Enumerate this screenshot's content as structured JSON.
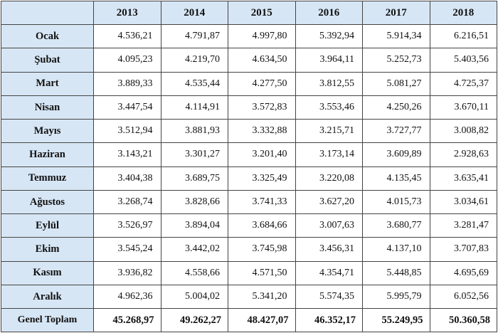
{
  "table": {
    "columns": [
      "2013",
      "2014",
      "2015",
      "2016",
      "2017",
      "2018"
    ],
    "rows": [
      {
        "label": "Ocak",
        "values": [
          "4.536,21",
          "4.791,87",
          "4.997,80",
          "5.392,94",
          "5.914,34",
          "6.216,51"
        ]
      },
      {
        "label": "Şubat",
        "values": [
          "4.095,23",
          "4.219,70",
          "4.634,50",
          "3.964,11",
          "5.252,73",
          "5.403,56"
        ]
      },
      {
        "label": "Mart",
        "values": [
          "3.889,33",
          "4.535,44",
          "4.277,50",
          "3.812,55",
          "5.081,27",
          "4.725,37"
        ]
      },
      {
        "label": "Nisan",
        "values": [
          "3.447,54",
          "4.114,91",
          "3.572,83",
          "3.553,46",
          "4.250,26",
          "3.670,11"
        ]
      },
      {
        "label": "Mayıs",
        "values": [
          "3.512,94",
          "3.881,93",
          "3.332,88",
          "3.215,71",
          "3.727,77",
          "3.008,82"
        ]
      },
      {
        "label": "Haziran",
        "values": [
          "3.143,21",
          "3.301,27",
          "3.201,40",
          "3.173,14",
          "3.609,89",
          "2.928,63"
        ]
      },
      {
        "label": "Temmuz",
        "values": [
          "3.404,38",
          "3.689,75",
          "3.325,49",
          "3.220,08",
          "4.135,45",
          "3.635,41"
        ]
      },
      {
        "label": "Ağustos",
        "values": [
          "3.268,74",
          "3.828,66",
          "3.741,33",
          "3.627,20",
          "4.015,73",
          "3.034,61"
        ]
      },
      {
        "label": "Eylül",
        "values": [
          "3.526,97",
          "3.894,04",
          "3.684,66",
          "3.007,63",
          "3.680,77",
          "3.281,47"
        ]
      },
      {
        "label": "Ekim",
        "values": [
          "3.545,24",
          "3.442,02",
          "3.745,98",
          "3.456,31",
          "4.137,10",
          "3.707,83"
        ]
      },
      {
        "label": "Kasım",
        "values": [
          "3.936,82",
          "4.558,66",
          "4.571,50",
          "4.354,71",
          "5.448,85",
          "4.695,69"
        ]
      },
      {
        "label": "Aralık",
        "values": [
          "4.962,36",
          "5.004,02",
          "5.341,20",
          "5.574,35",
          "5.995,79",
          "6.052,56"
        ]
      }
    ],
    "total": {
      "label": "Genel Toplam",
      "values": [
        "45.268,97",
        "49.262,27",
        "48.427,07",
        "46.352,17",
        "55.249,95",
        "50.360,58"
      ]
    }
  },
  "colors": {
    "header_fill": "#d7e6f5",
    "border": "#444444"
  }
}
